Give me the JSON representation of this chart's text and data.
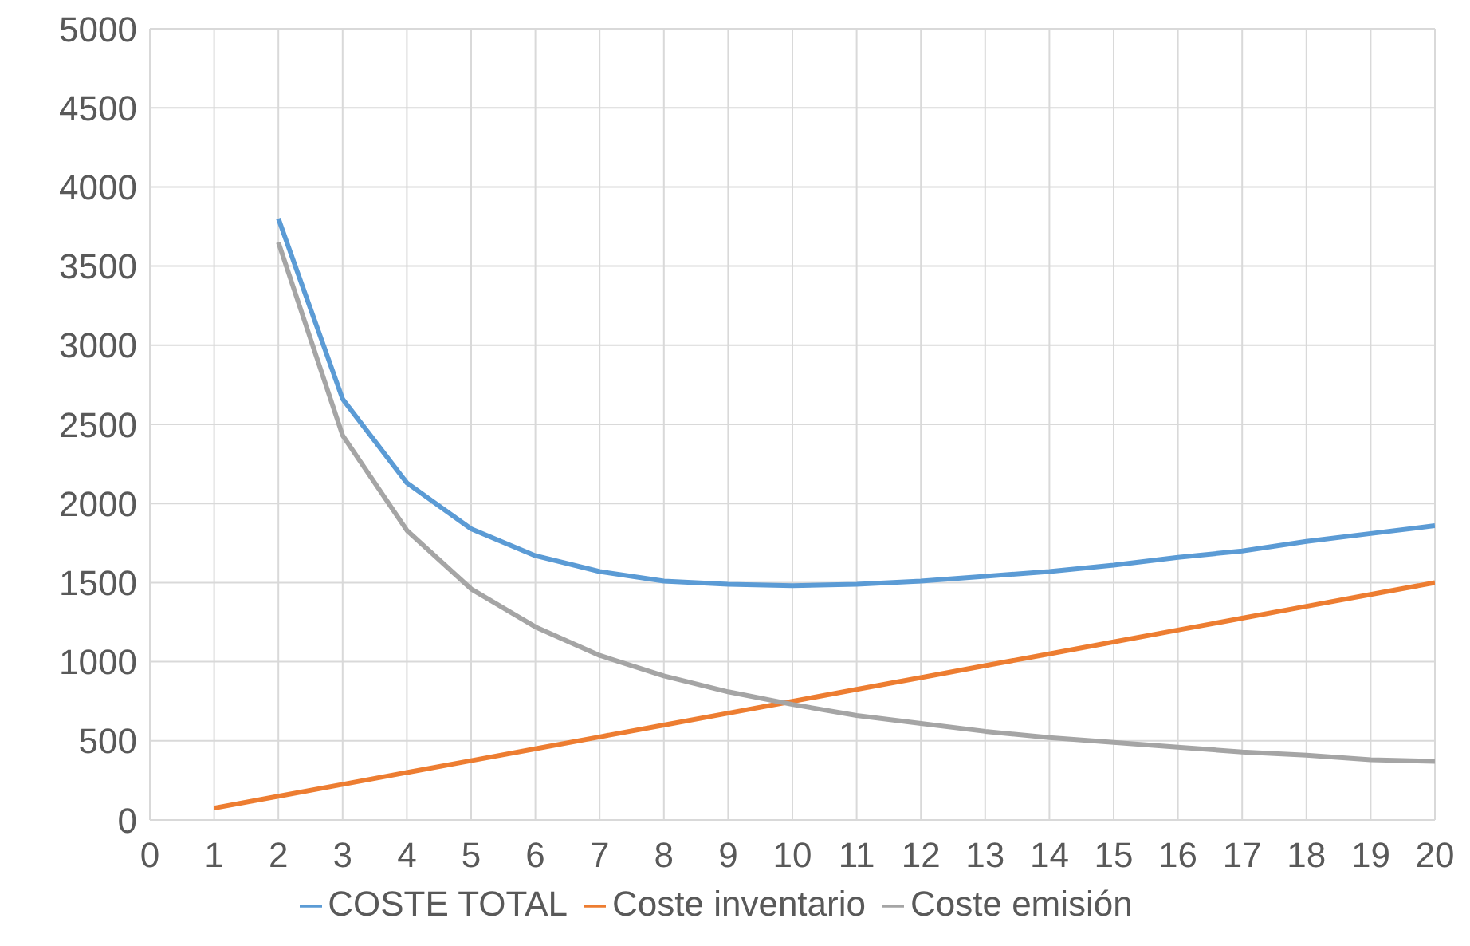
{
  "chart_data": {
    "type": "line",
    "x": [
      1,
      2,
      3,
      4,
      5,
      6,
      7,
      8,
      9,
      10,
      11,
      12,
      13,
      14,
      15,
      16,
      17,
      18,
      19,
      20
    ],
    "series": [
      {
        "name": "COSTE TOTAL",
        "color": "#5b9bd5",
        "values": [
          null,
          3800,
          2660,
          2130,
          1840,
          1670,
          1570,
          1510,
          1490,
          1480,
          1490,
          1510,
          1540,
          1570,
          1610,
          1660,
          1700,
          1760,
          1810,
          1860
        ]
      },
      {
        "name": "Coste inventario",
        "color": "#ed7d31",
        "values": [
          75,
          150,
          225,
          300,
          375,
          450,
          525,
          600,
          675,
          750,
          825,
          900,
          975,
          1050,
          1125,
          1200,
          1275,
          1350,
          1425,
          1500
        ]
      },
      {
        "name": "Coste emisión",
        "color": "#a5a5a5",
        "values": [
          null,
          3650,
          2430,
          1830,
          1460,
          1220,
          1040,
          910,
          810,
          730,
          660,
          610,
          560,
          520,
          490,
          460,
          430,
          410,
          380,
          370
        ]
      }
    ],
    "xlim": [
      0,
      20
    ],
    "xticks": [
      0,
      1,
      2,
      3,
      4,
      5,
      6,
      7,
      8,
      9,
      10,
      11,
      12,
      13,
      14,
      15,
      16,
      17,
      18,
      19,
      20
    ],
    "ylim": [
      0,
      5000
    ],
    "yticks": [
      0,
      500,
      1000,
      1500,
      2000,
      2500,
      3000,
      3500,
      4000,
      4500,
      5000
    ],
    "grid": true,
    "legend": "bottom",
    "marker": "none",
    "line_style": "solid"
  }
}
